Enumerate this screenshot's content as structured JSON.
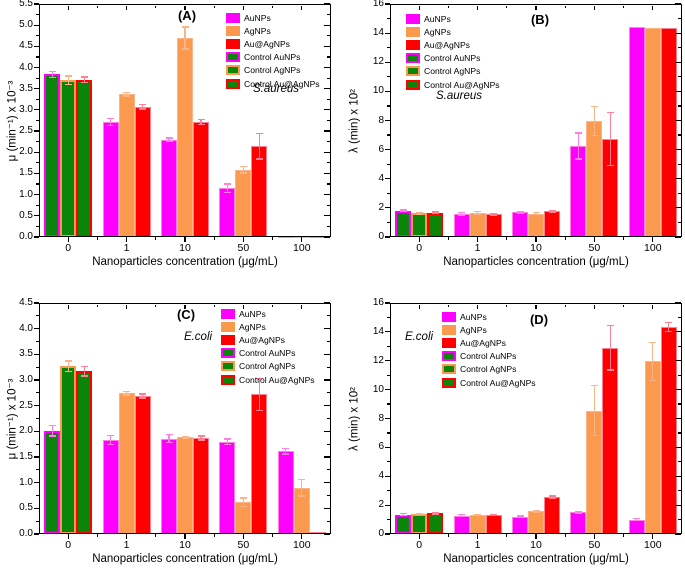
{
  "legend_labels": [
    "AuNPs",
    "AgNPs",
    "Au@AgNPs",
    "Control AuNPs",
    "Control AgNPs",
    "Control Au@AgNPs"
  ],
  "colors": {
    "AuNPs": "#ff00ff",
    "AgNPs": "#fb9a4f",
    "Au@AgNPs": "#ff0000",
    "control_fill": "#0a850a",
    "axis": "#000000"
  },
  "chart_data": [
    {
      "type": "bar",
      "panel_label": "(A)",
      "organism": "S.aureus",
      "ylabel": "μ (min⁻¹) x 10⁻³",
      "xlabel": "Nanoparticles concentration (μg/mL)",
      "categories": [
        "0",
        "1",
        "10",
        "50",
        "100"
      ],
      "ylim": [
        0,
        5.5
      ],
      "ytick_major": 0.5,
      "ytick_minor": 0.25,
      "ytick_decimals": 1,
      "legend_position": "top-right",
      "control_note": "bars at 0 μg/mL are controls: green fill outlined in the series color",
      "series": [
        {
          "name": "AuNPs",
          "color": "#ff00ff",
          "light_color": "#ff7fe3",
          "values": [
            3.84,
            2.72,
            2.3,
            1.15,
            0.02
          ],
          "errors": [
            0.07,
            0.08,
            0.04,
            0.1,
            0
          ]
        },
        {
          "name": "AgNPs",
          "color": "#fb9a4f",
          "light_color": "#f9b587",
          "values": [
            3.7,
            3.37,
            4.7,
            1.59,
            0.02
          ],
          "errors": [
            0.1,
            0.04,
            0.26,
            0.08,
            0
          ]
        },
        {
          "name": "Au@AgNPs",
          "color": "#ff0000",
          "light_color": "#ff8092",
          "values": [
            3.71,
            3.07,
            2.72,
            2.14,
            0.02
          ],
          "errors": [
            0.07,
            0.05,
            0.06,
            0.3,
            0
          ]
        }
      ]
    },
    {
      "type": "bar",
      "panel_label": "(B)",
      "organism": "S.aureus",
      "ylabel": "λ (min) x 10²",
      "xlabel": "Nanoparticles concentration (μg/mL)",
      "categories": [
        "0",
        "1",
        "10",
        "50",
        "100"
      ],
      "ylim": [
        0,
        16
      ],
      "ytick_major": 2,
      "ytick_minor": 1,
      "ytick_decimals": 0,
      "legend_position": "top-left",
      "control_note": "bars at 0 μg/mL are controls: green fill outlined in the series color",
      "series": [
        {
          "name": "AuNPs",
          "color": "#ff00ff",
          "light_color": "#ff7fe3",
          "values": [
            1.8,
            1.58,
            1.7,
            6.25,
            14.4
          ],
          "errors": [
            0.05,
            0.08,
            0.05,
            0.9,
            0
          ]
        },
        {
          "name": "AgNPs",
          "color": "#fb9a4f",
          "light_color": "#f9b587",
          "values": [
            1.62,
            1.66,
            1.6,
            7.95,
            14.38
          ],
          "errors": [
            0.06,
            0.08,
            0.07,
            1.0,
            0
          ]
        },
        {
          "name": "Au@AgNPs",
          "color": "#ff0000",
          "light_color": "#ff8092",
          "values": [
            1.67,
            1.55,
            1.78,
            6.75,
            14.38
          ],
          "errors": [
            0.04,
            0.05,
            0.06,
            1.82,
            0
          ]
        }
      ]
    },
    {
      "type": "bar",
      "panel_label": "(C)",
      "organism": "E.coli",
      "ylabel": "μ (min⁻¹) x 10⁻³",
      "xlabel": "Nanoparticles concentration (μg/mL)",
      "categories": [
        "0",
        "1",
        "10",
        "50",
        "100"
      ],
      "ylim": [
        0,
        4.5
      ],
      "ytick_major": 0.5,
      "ytick_minor": 0.25,
      "ytick_decimals": 1,
      "legend_position": "top-right",
      "control_note": "bars at 0 μg/mL are controls: green fill outlined in the series color",
      "series": [
        {
          "name": "AuNPs",
          "color": "#ff00ff",
          "light_color": "#ff7fe3",
          "values": [
            2.01,
            1.83,
            1.86,
            1.8,
            1.61
          ],
          "errors": [
            0.1,
            0.09,
            0.08,
            0.05,
            0.05
          ]
        },
        {
          "name": "AgNPs",
          "color": "#fb9a4f",
          "light_color": "#f9b587",
          "values": [
            3.27,
            2.74,
            1.88,
            0.62,
            0.9
          ],
          "errors": [
            0.1,
            0.03,
            0.02,
            0.08,
            0.16
          ]
        },
        {
          "name": "Au@AgNPs",
          "color": "#ff0000",
          "light_color": "#ff8092",
          "values": [
            3.17,
            2.69,
            1.87,
            2.72,
            0.04
          ],
          "errors": [
            0.09,
            0.04,
            0.04,
            0.31,
            0
          ]
        }
      ]
    },
    {
      "type": "bar",
      "panel_label": "(D)",
      "organism": "E.coli",
      "ylabel": "λ (min) x 10²",
      "xlabel": "Nanoparticles concentration (μg/mL)",
      "categories": [
        "0",
        "1",
        "10",
        "50",
        "100"
      ],
      "ylim": [
        0,
        16
      ],
      "ytick_major": 2,
      "ytick_minor": 1,
      "ytick_decimals": 0,
      "legend_position": "top-left",
      "control_note": "bars at 0 μg/mL are controls: green fill outlined in the series color",
      "series": [
        {
          "name": "AuNPs",
          "color": "#ff00ff",
          "light_color": "#ff7fe3",
          "values": [
            1.35,
            1.28,
            1.18,
            1.5,
            1.0
          ],
          "errors": [
            0.06,
            0.07,
            0.06,
            0.08,
            0.05
          ]
        },
        {
          "name": "AgNPs",
          "color": "#fb9a4f",
          "light_color": "#f9b587",
          "values": [
            1.38,
            1.3,
            1.57,
            8.55,
            11.95
          ],
          "errors": [
            0.04,
            0.04,
            0.05,
            1.75,
            1.3
          ]
        },
        {
          "name": "Au@AgNPs",
          "color": "#ff0000",
          "light_color": "#ff8092",
          "values": [
            1.42,
            1.33,
            2.55,
            12.9,
            14.35
          ],
          "errors": [
            0.04,
            0.04,
            0.08,
            1.55,
            0.3
          ]
        }
      ]
    }
  ]
}
